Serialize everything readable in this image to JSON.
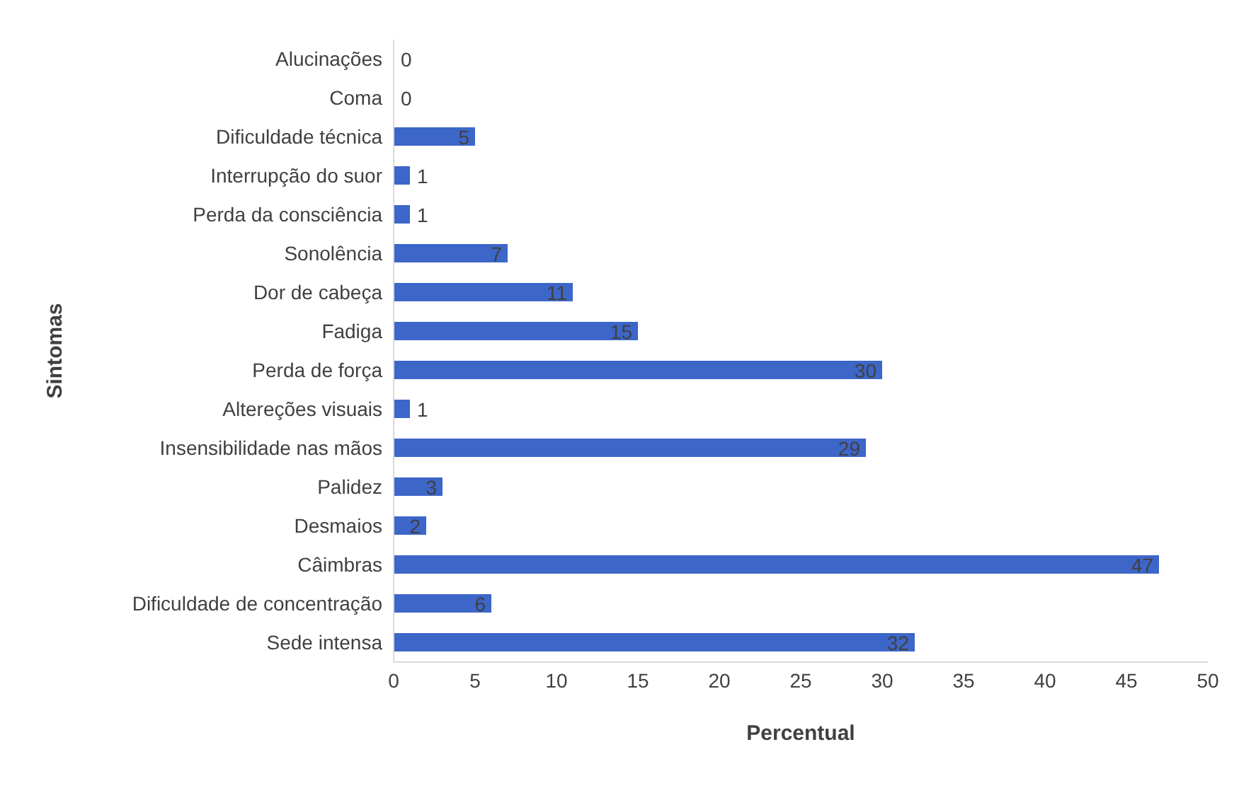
{
  "chart_data": {
    "type": "bar",
    "orientation": "horizontal",
    "ylabel": "Sintomas",
    "xlabel": "Percentual",
    "categories": [
      "Alucinações",
      "Coma",
      "Dificuldade técnica",
      "Interrupção do suor",
      "Perda da consciência",
      "Sonolência",
      "Dor de cabeça",
      "Fadiga",
      "Perda de força",
      "Altereções visuais",
      "Insensibilidade nas mãos",
      "Palidez",
      "Desmaios",
      "Câimbras",
      "Dificuldade de concentração",
      "Sede intensa"
    ],
    "values": [
      0,
      0,
      5,
      1,
      1,
      7,
      11,
      15,
      30,
      1,
      29,
      3,
      2,
      47,
      6,
      32
    ],
    "color": "#3d66c9",
    "xlim": [
      0,
      50
    ],
    "xticks": [
      0,
      5,
      10,
      15,
      20,
      25,
      30,
      35,
      40,
      45,
      50
    ],
    "grid": false,
    "data_labels": true
  }
}
